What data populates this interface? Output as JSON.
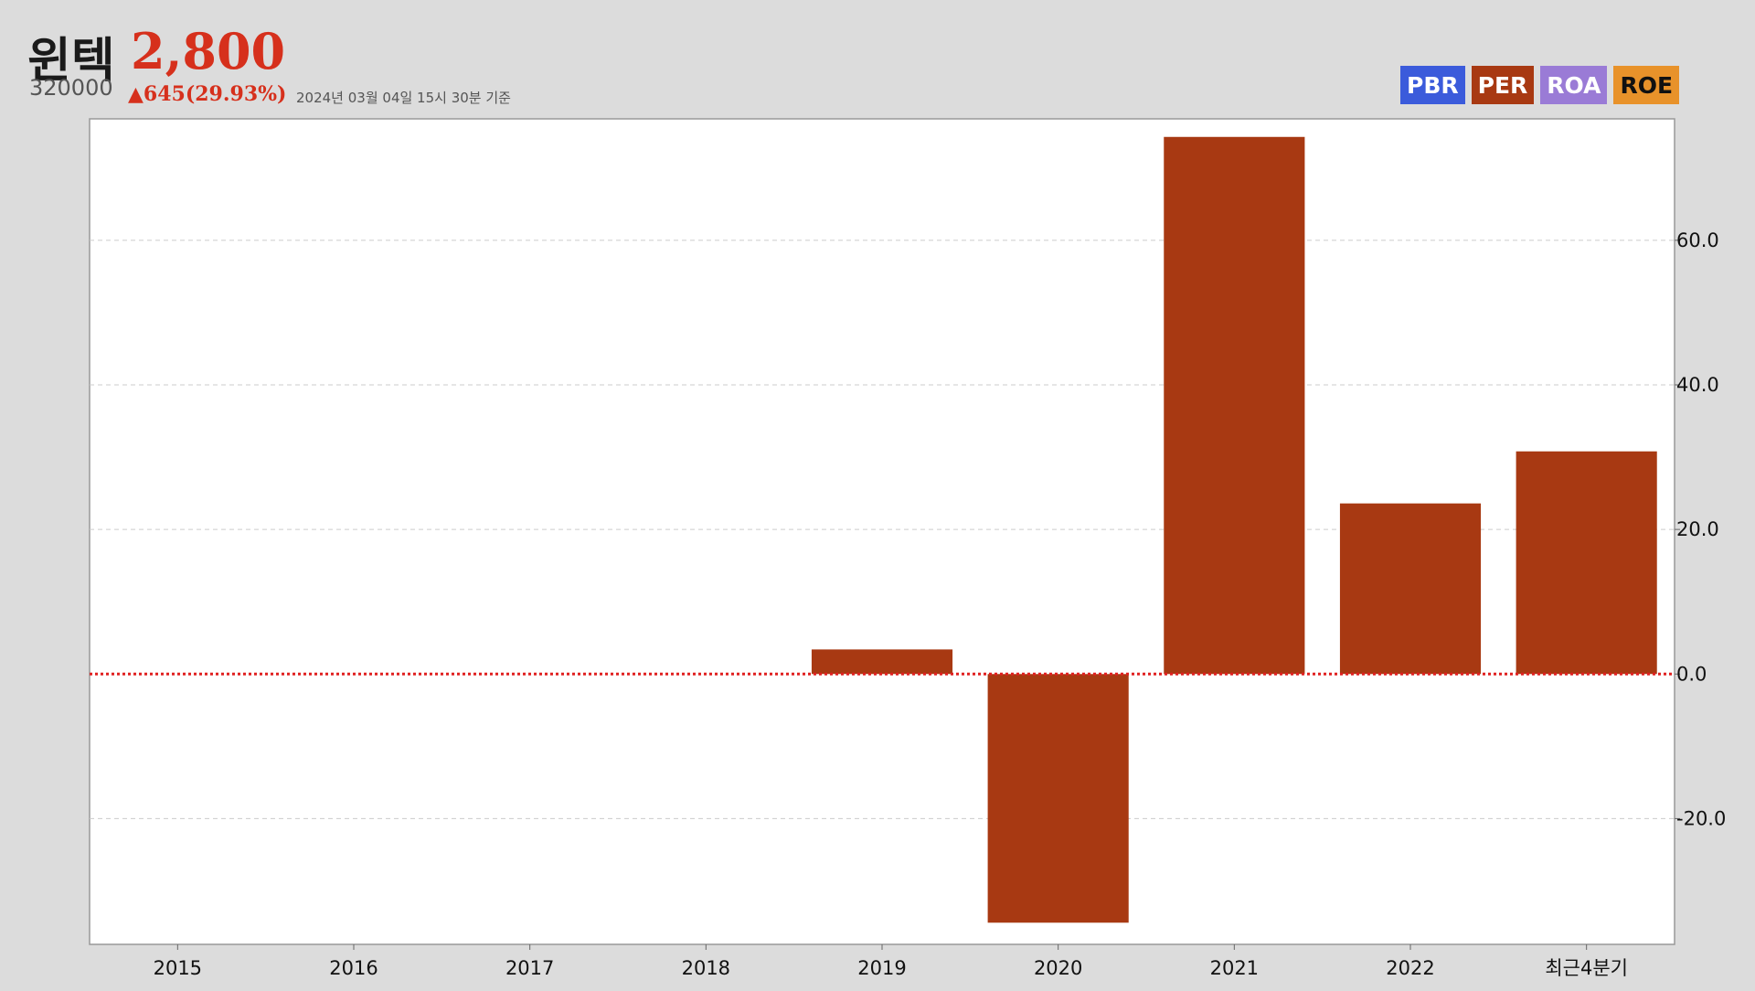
{
  "header": {
    "name": "윈텍",
    "price": "2,800",
    "code": "320000",
    "change": "▲645(29.93%)",
    "timestamp": "2024년 03월 04일 15시 30분 기준"
  },
  "metrics": [
    {
      "label": "PBR",
      "color": "#3b5bdb"
    },
    {
      "label": "PER",
      "color": "#a83912"
    },
    {
      "label": "ROA",
      "color": "#9a7bd6"
    },
    {
      "label": "ROE",
      "color": "#e8922a"
    }
  ],
  "colors": {
    "bar": "#a83912",
    "zero_line": "#e02020",
    "grid": "#cccccc",
    "plot_bg": "#ffffff"
  },
  "chart_data": {
    "type": "bar",
    "categories": [
      "2015",
      "2016",
      "2017",
      "2018",
      "2019",
      "2020",
      "2021",
      "2022",
      "최근4분기"
    ],
    "values": [
      null,
      null,
      null,
      null,
      3.4,
      -34.4,
      74.3,
      23.6,
      30.8
    ],
    "yticks": [
      -20,
      0,
      20,
      40,
      60
    ],
    "ytick_labels": [
      "-20.0",
      "0.0",
      "20.0",
      "40.0",
      "60.0"
    ],
    "ylim": [
      -37.4,
      76.8
    ],
    "grid": true,
    "zero_line": "dotted",
    "y_axis_side": "right"
  }
}
